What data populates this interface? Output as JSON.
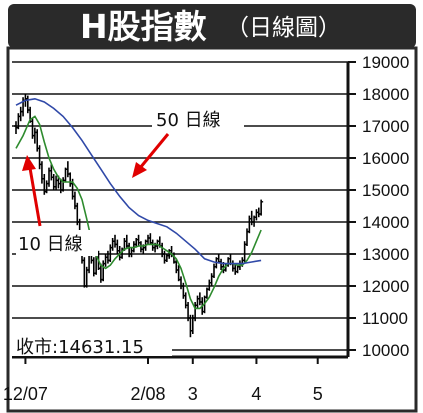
{
  "chart_data": {
    "type": "line",
    "title": "H股指數",
    "subtitle": "（日線圖）",
    "ylim": [
      10000,
      19000
    ],
    "y_ticks": [
      "19000",
      "18000",
      "17000",
      "16000",
      "15000",
      "14000",
      "13000",
      "12000",
      "11000",
      "10000"
    ],
    "y_tick_values": [
      19000,
      18000,
      17000,
      16000,
      15000,
      14000,
      13000,
      12000,
      11000,
      10000
    ],
    "x_tick_labels": [
      "12/07",
      "2/08",
      "3",
      "4",
      "5"
    ],
    "x_tick_positions": [
      4,
      56,
      75,
      102,
      128
    ],
    "x_range": [
      0,
      140
    ],
    "close_label": "收市:14631.15",
    "annotations": [
      {
        "text": "50 日線",
        "series": "ma50"
      },
      {
        "text": "10 日線",
        "series": "ma10"
      }
    ],
    "series": [
      {
        "key": "price",
        "style": "ohlc-bars",
        "color": "#000000",
        "ohlc": [
          [
            0,
            17000,
            17150,
            16750,
            16950
          ],
          [
            1,
            16950,
            17400,
            16900,
            17300
          ],
          [
            2,
            17300,
            17600,
            17150,
            17450
          ],
          [
            3,
            17450,
            17900,
            17300,
            17800
          ],
          [
            4,
            17800,
            18000,
            17600,
            17850
          ],
          [
            5,
            17850,
            17950,
            17400,
            17500
          ],
          [
            6,
            17500,
            17600,
            17100,
            17150
          ],
          [
            7,
            17150,
            17250,
            16600,
            16700
          ],
          [
            8,
            16700,
            16950,
            16450,
            16800
          ],
          [
            9,
            16800,
            16900,
            16200,
            16300
          ],
          [
            10,
            16300,
            16400,
            15650,
            15800
          ],
          [
            11,
            15800,
            15900,
            15200,
            15350
          ],
          [
            12,
            15350,
            15500,
            14850,
            14950
          ],
          [
            13,
            14950,
            15300,
            14900,
            15200
          ],
          [
            14,
            15200,
            15700,
            15100,
            15600
          ],
          [
            15,
            15600,
            15800,
            15300,
            15400
          ],
          [
            16,
            15400,
            15500,
            15000,
            15100
          ],
          [
            17,
            15100,
            15450,
            15000,
            15300
          ],
          [
            18,
            15300,
            15450,
            15050,
            15200
          ],
          [
            19,
            15200,
            15350,
            14900,
            15000
          ],
          [
            20,
            15000,
            15400,
            14950,
            15300
          ],
          [
            21,
            15300,
            15700,
            15250,
            15650
          ],
          [
            22,
            15650,
            15900,
            15400,
            15500
          ],
          [
            23,
            15500,
            15550,
            15100,
            15200
          ],
          [
            24,
            15200,
            15350,
            14700,
            14800
          ],
          [
            25,
            14800,
            14950,
            14400,
            14500
          ],
          [
            26,
            14500,
            14600,
            13900,
            14000
          ],
          [
            27,
            14000,
            14100,
            13300,
            13400
          ],
          [
            28,
            13400,
            13600,
            12700,
            12800
          ],
          [
            29,
            12800,
            12900,
            11950,
            12000
          ],
          [
            30,
            12000,
            12600,
            11950,
            12500
          ],
          [
            31,
            12500,
            13100,
            12400,
            13000
          ],
          [
            32,
            13000,
            13300,
            12700,
            12800
          ],
          [
            33,
            12800,
            12900,
            12300,
            12400
          ],
          [
            34,
            12400,
            12950,
            12350,
            12900
          ],
          [
            35,
            12900,
            13100,
            12500,
            12550
          ],
          [
            36,
            12550,
            12700,
            12100,
            12200
          ],
          [
            37,
            12200,
            12800,
            12150,
            12700
          ],
          [
            38,
            12700,
            13000,
            12600,
            12900
          ],
          [
            39,
            12900,
            13100,
            12700,
            12800
          ],
          [
            40,
            12800,
            13300,
            12750,
            13200
          ],
          [
            41,
            13200,
            13500,
            13100,
            13400
          ],
          [
            42,
            13400,
            13600,
            13200,
            13300
          ],
          [
            43,
            13300,
            13450,
            13000,
            13100
          ],
          [
            44,
            13100,
            13250,
            12800,
            12900
          ],
          [
            45,
            12900,
            13200,
            12850,
            13150
          ],
          [
            46,
            13150,
            13500,
            13100,
            13400
          ],
          [
            47,
            13400,
            13600,
            13200,
            13250
          ],
          [
            48,
            13250,
            13350,
            12900,
            13000
          ],
          [
            49,
            13000,
            13200,
            12900,
            13100
          ],
          [
            50,
            13100,
            13400,
            13050,
            13300
          ],
          [
            51,
            13300,
            13500,
            13200,
            13450
          ],
          [
            52,
            13450,
            13600,
            13250,
            13350
          ],
          [
            53,
            13350,
            13400,
            13050,
            13150
          ],
          [
            54,
            13150,
            13300,
            13000,
            13200
          ],
          [
            55,
            13200,
            13450,
            13100,
            13400
          ],
          [
            56,
            13400,
            13600,
            13300,
            13500
          ],
          [
            57,
            13500,
            13650,
            13300,
            13350
          ],
          [
            58,
            13350,
            13450,
            13100,
            13200
          ],
          [
            59,
            13200,
            13350,
            13050,
            13250
          ],
          [
            60,
            13250,
            13450,
            13150,
            13400
          ],
          [
            61,
            13400,
            13550,
            13200,
            13250
          ],
          [
            62,
            13250,
            13350,
            12900,
            13000
          ],
          [
            63,
            13000,
            13100,
            12700,
            12800
          ],
          [
            64,
            12800,
            13000,
            12750,
            12950
          ],
          [
            65,
            12950,
            13150,
            12850,
            13100
          ],
          [
            66,
            13100,
            13250,
            12900,
            12950
          ],
          [
            67,
            12950,
            13050,
            12700,
            12750
          ],
          [
            68,
            12750,
            12850,
            12400,
            12500
          ],
          [
            69,
            12500,
            12650,
            12150,
            12200
          ],
          [
            70,
            12200,
            12300,
            11900,
            12000
          ],
          [
            71,
            12000,
            12100,
            11600,
            11700
          ],
          [
            72,
            11700,
            11800,
            11300,
            11400
          ],
          [
            73,
            11400,
            11500,
            10900,
            11000
          ],
          [
            74,
            11000,
            11100,
            10400,
            10600
          ],
          [
            75,
            10600,
            11100,
            10500,
            11000
          ],
          [
            76,
            11000,
            11500,
            10900,
            11400
          ],
          [
            77,
            11400,
            11700,
            11300,
            11600
          ],
          [
            78,
            11600,
            11800,
            11400,
            11500
          ],
          [
            79,
            11500,
            11650,
            11100,
            11200
          ],
          [
            80,
            11200,
            11700,
            11150,
            11650
          ],
          [
            81,
            11650,
            11950,
            11600,
            11900
          ],
          [
            82,
            11900,
            12200,
            11850,
            12100
          ],
          [
            83,
            12100,
            12400,
            12000,
            12300
          ],
          [
            84,
            12300,
            12700,
            12250,
            12600
          ],
          [
            85,
            12600,
            12900,
            12550,
            12850
          ],
          [
            86,
            12850,
            13000,
            12700,
            12750
          ],
          [
            87,
            12750,
            12850,
            12500,
            12600
          ],
          [
            88,
            12600,
            12750,
            12400,
            12500
          ],
          [
            89,
            12500,
            12700,
            12450,
            12650
          ],
          [
            90,
            12650,
            12900,
            12600,
            12850
          ],
          [
            91,
            12850,
            13000,
            12650,
            12700
          ],
          [
            92,
            12700,
            12800,
            12450,
            12550
          ],
          [
            93,
            12550,
            12700,
            12350,
            12450
          ],
          [
            94,
            12450,
            12650,
            12400,
            12600
          ],
          [
            95,
            12600,
            12800,
            12500,
            12700
          ],
          [
            96,
            12700,
            12900,
            12600,
            12800
          ],
          [
            97,
            12800,
            13400,
            12750,
            13300
          ],
          [
            98,
            13300,
            13800,
            13250,
            13700
          ],
          [
            99,
            13700,
            14200,
            13650,
            14100
          ],
          [
            100,
            14100,
            14350,
            13900,
            14000
          ],
          [
            101,
            14000,
            14200,
            13850,
            14150
          ],
          [
            102,
            14150,
            14400,
            14050,
            14300
          ],
          [
            103,
            14300,
            14450,
            14150,
            14250
          ],
          [
            104,
            14250,
            14700,
            14200,
            14631.15
          ]
        ]
      },
      {
        "key": "ma10",
        "style": "line",
        "color": "#2e8b2e",
        "points": [
          [
            0,
            16300
          ],
          [
            3,
            16700
          ],
          [
            6,
            17200
          ],
          [
            8,
            17300
          ],
          [
            10,
            17050
          ],
          [
            12,
            16500
          ],
          [
            14,
            16000
          ],
          [
            16,
            15650
          ],
          [
            18,
            15400
          ],
          [
            20,
            15250
          ],
          [
            22,
            15250
          ],
          [
            24,
            15250
          ],
          [
            26,
            15050
          ],
          [
            28,
            14700
          ],
          [
            30,
            14100
          ],
          [
            32,
            13450
          ],
          [
            34,
            12950
          ],
          [
            36,
            12650
          ],
          [
            38,
            12550
          ],
          [
            40,
            12650
          ],
          [
            42,
            12850
          ],
          [
            44,
            13000
          ],
          [
            46,
            13150
          ],
          [
            48,
            13200
          ],
          [
            50,
            13200
          ],
          [
            52,
            13250
          ],
          [
            54,
            13250
          ],
          [
            56,
            13300
          ],
          [
            58,
            13300
          ],
          [
            60,
            13300
          ],
          [
            62,
            13200
          ],
          [
            64,
            13100
          ],
          [
            66,
            13000
          ],
          [
            68,
            12850
          ],
          [
            70,
            12550
          ],
          [
            72,
            12100
          ],
          [
            74,
            11600
          ],
          [
            76,
            11300
          ],
          [
            78,
            11300
          ],
          [
            80,
            11450
          ],
          [
            82,
            11650
          ],
          [
            84,
            11950
          ],
          [
            86,
            12300
          ],
          [
            88,
            12550
          ],
          [
            90,
            12700
          ],
          [
            92,
            12700
          ],
          [
            94,
            12650
          ],
          [
            96,
            12650
          ],
          [
            98,
            12800
          ],
          [
            100,
            13050
          ],
          [
            102,
            13400
          ],
          [
            104,
            13750
          ]
        ]
      },
      {
        "key": "ma50",
        "style": "line",
        "color": "#3049a8",
        "points": [
          [
            0,
            17650
          ],
          [
            4,
            17800
          ],
          [
            8,
            17850
          ],
          [
            12,
            17750
          ],
          [
            16,
            17550
          ],
          [
            20,
            17300
          ],
          [
            24,
            16950
          ],
          [
            28,
            16550
          ],
          [
            32,
            16100
          ],
          [
            36,
            15650
          ],
          [
            40,
            15200
          ],
          [
            44,
            14800
          ],
          [
            48,
            14450
          ],
          [
            52,
            14200
          ],
          [
            56,
            14050
          ],
          [
            60,
            13950
          ],
          [
            64,
            13850
          ],
          [
            68,
            13650
          ],
          [
            72,
            13400
          ],
          [
            76,
            13150
          ],
          [
            80,
            12850
          ],
          [
            84,
            12750
          ],
          [
            88,
            12700
          ],
          [
            92,
            12700
          ],
          [
            96,
            12700
          ],
          [
            100,
            12750
          ],
          [
            104,
            12800
          ]
        ]
      }
    ]
  }
}
